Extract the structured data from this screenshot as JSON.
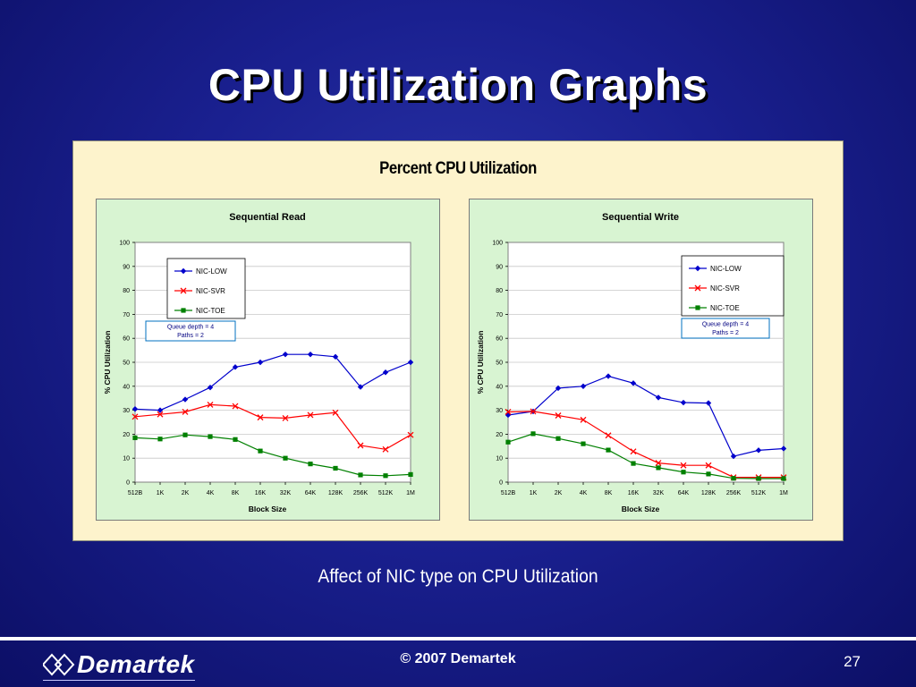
{
  "slide": {
    "title": "CPU Utilization Graphs",
    "caption": "Affect of NIC type on CPU Utilization",
    "copyright": "© 2007 Demartek",
    "page_number": "27",
    "logo_text": "Demartek"
  },
  "panel": {
    "title": "Percent CPU Utilization"
  },
  "colors": {
    "background": "#1a2090",
    "panel": "#fdf3cc",
    "plot_area": "#d8f4d2",
    "NIC-LOW": "#0000cc",
    "NIC-SVR": "#ff0000",
    "NIC-TOE": "#008000"
  },
  "chart_data": [
    {
      "type": "line",
      "title": "Sequential Read",
      "xlabel": "Block Size",
      "ylabel": "% CPU Utilization",
      "ylim": [
        0,
        100
      ],
      "yticks": [
        0,
        10,
        20,
        30,
        40,
        50,
        60,
        70,
        80,
        90,
        100
      ],
      "grid": true,
      "legend_position": "top-left",
      "annotation": [
        "Queue depth = 4",
        "Paths = 2"
      ],
      "categories": [
        "512B",
        "1K",
        "2K",
        "4K",
        "8K",
        "16K",
        "32K",
        "64K",
        "128K",
        "256K",
        "512K",
        "1M"
      ],
      "series": [
        {
          "name": "NIC-LOW",
          "marker": "diamond",
          "values": [
            30.5,
            30,
            34.5,
            39.5,
            48,
            50,
            53.3,
            53.3,
            52.3,
            39.7,
            45.8,
            50
          ]
        },
        {
          "name": "NIC-SVR",
          "marker": "x",
          "values": [
            27.3,
            28.3,
            29.3,
            32.3,
            31.7,
            27,
            26.7,
            28,
            29,
            15.3,
            13.7,
            19.7
          ]
        },
        {
          "name": "NIC-TOE",
          "marker": "square",
          "values": [
            18.5,
            18,
            19.7,
            19,
            17.8,
            13,
            10,
            7.6,
            5.8,
            3,
            2.7,
            3.2
          ]
        }
      ]
    },
    {
      "type": "line",
      "title": "Sequential Write",
      "xlabel": "Block Size",
      "ylabel": "% CPU Utilization",
      "ylim": [
        0,
        100
      ],
      "yticks": [
        0,
        10,
        20,
        30,
        40,
        50,
        60,
        70,
        80,
        90,
        100
      ],
      "grid": true,
      "legend_position": "top-right",
      "annotation": [
        "Queue depth = 4",
        "Paths = 2"
      ],
      "categories": [
        "512B",
        "1K",
        "2K",
        "4K",
        "8K",
        "16K",
        "32K",
        "64K",
        "128K",
        "256K",
        "512K",
        "1M"
      ],
      "series": [
        {
          "name": "NIC-LOW",
          "marker": "diamond",
          "values": [
            28,
            29.5,
            39.2,
            40,
            44.2,
            41.3,
            35.3,
            33.2,
            33,
            10.8,
            13.3,
            14
          ]
        },
        {
          "name": "NIC-SVR",
          "marker": "x",
          "values": [
            29.3,
            29.5,
            27.8,
            26,
            19.5,
            12.8,
            8,
            7,
            7,
            2,
            2,
            2
          ]
        },
        {
          "name": "NIC-TOE",
          "marker": "square",
          "values": [
            16.7,
            20.2,
            18.2,
            16,
            13.4,
            7.8,
            6,
            4.2,
            3.4,
            1.6,
            1.5,
            1.5
          ]
        }
      ]
    }
  ]
}
